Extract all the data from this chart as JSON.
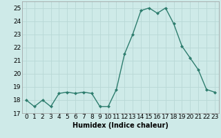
{
  "x": [
    0,
    1,
    2,
    3,
    4,
    5,
    6,
    7,
    8,
    9,
    10,
    11,
    12,
    13,
    14,
    15,
    16,
    17,
    18,
    19,
    20,
    21,
    22,
    23
  ],
  "y": [
    18.0,
    17.5,
    18.0,
    17.5,
    18.5,
    18.6,
    18.5,
    18.6,
    18.5,
    17.5,
    17.5,
    18.8,
    21.5,
    23.0,
    24.8,
    25.0,
    24.6,
    25.0,
    23.8,
    22.1,
    21.2,
    20.3,
    18.8,
    18.6
  ],
  "line_color": "#2e7d6e",
  "marker": "D",
  "marker_size": 2.0,
  "bg_color": "#ceeae8",
  "grid_color": "#b8d8d5",
  "xlabel": "Humidex (Indice chaleur)",
  "xlim": [
    -0.5,
    23.5
  ],
  "ylim": [
    17,
    25.5
  ],
  "yticks": [
    17,
    18,
    19,
    20,
    21,
    22,
    23,
    24,
    25
  ],
  "xticks": [
    0,
    1,
    2,
    3,
    4,
    5,
    6,
    7,
    8,
    9,
    10,
    11,
    12,
    13,
    14,
    15,
    16,
    17,
    18,
    19,
    20,
    21,
    22,
    23
  ],
  "xlabel_fontsize": 7.0,
  "tick_fontsize": 6.5,
  "line_width": 1.0
}
